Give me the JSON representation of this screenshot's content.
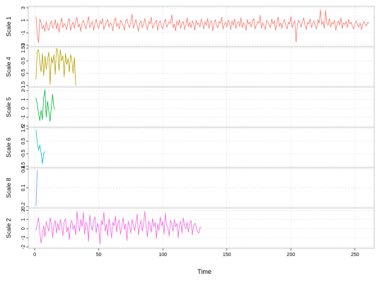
{
  "chart_data": {
    "type": "line",
    "xlabel": "Time",
    "xlim": [
      -5,
      265
    ],
    "xticks": [
      0,
      50,
      100,
      150,
      200,
      250
    ],
    "grid": true,
    "panels": [
      {
        "ylabel": "Scale 1",
        "color": "#F8766D",
        "ylim": [
          -3,
          3
        ],
        "yticks": [
          -3,
          -1,
          1,
          3
        ],
        "ytick_labels": [
          "-3",
          "-1",
          "1",
          "3"
        ],
        "x_start": 1,
        "values": [
          1.6,
          -1.2,
          -2.6,
          1.2,
          0.6,
          -0.4,
          0.2,
          -0.8,
          0.8,
          -0.2,
          -0.6,
          0.4,
          0.9,
          -0.3,
          0.2,
          1.1,
          -0.4,
          0.6,
          -0.9,
          0.3,
          1.4,
          -0.2,
          0.5,
          0.1,
          -0.5,
          0.8,
          1.3,
          -0.6,
          0.2,
          0.7,
          -0.3,
          0.9,
          1.5,
          -0.1,
          0.4,
          -0.8,
          0.6,
          1.0,
          0.2,
          -0.4,
          0.7,
          1.6,
          -0.2,
          0.3,
          0.8,
          -0.6,
          0.5,
          1.2,
          0.1,
          -0.3,
          0.9,
          0.4,
          1.3,
          -0.5,
          0.2,
          0.7,
          1.1,
          -0.1,
          0.6,
          0.3,
          -0.7,
          0.8,
          1.4,
          0.0,
          0.5,
          -0.4,
          1.0,
          0.6,
          0.2,
          -0.6,
          0.9,
          1.2,
          0.3,
          -0.2,
          0.7,
          2.0,
          -0.3,
          0.4,
          1.1,
          0.2,
          -0.8,
          0.6,
          0.9,
          -0.2,
          0.5,
          1.3,
          0.1,
          -0.5,
          0.8,
          0.4,
          1.5,
          -0.3,
          0.2,
          0.7,
          1.0,
          -0.6,
          0.5,
          0.9,
          0.1,
          -0.4,
          0.6,
          1.2,
          -0.1,
          0.3,
          0.8,
          0.5,
          1.9,
          -0.2,
          0.4,
          -0.7,
          0.9,
          0.2,
          1.1,
          -0.3,
          0.6,
          0.8,
          -0.5,
          0.3,
          1.4,
          0.0,
          0.7,
          -0.2,
          0.9,
          0.4,
          -0.6,
          1.0,
          0.3,
          0.6,
          -0.1,
          1.2,
          0.5,
          -0.4,
          0.8,
          0.2,
          1.3,
          -0.3,
          0.6,
          0.9,
          -0.7,
          0.4,
          1.1,
          0.1,
          -0.2,
          0.8,
          0.5,
          1.5,
          -0.4,
          0.3,
          0.7,
          -0.1,
          1.0,
          0.6,
          -0.5,
          0.9,
          0.2,
          1.2,
          -0.3,
          0.5,
          0.8,
          0.0,
          1.4,
          -0.2,
          0.6,
          0.3,
          -0.6,
          1.1,
          0.4,
          0.7,
          -0.1,
          0.9,
          1.3,
          -0.4,
          0.2,
          0.8,
          0.5,
          1.8,
          -0.3,
          0.6,
          0.1,
          -0.5,
          1.0,
          0.7,
          0.3,
          -0.2,
          1.2,
          0.4,
          0.9,
          -0.6,
          0.5,
          1.5,
          0.0,
          0.6,
          -0.3,
          0.8,
          1.1,
          0.2,
          -0.4,
          0.7,
          0.4,
          1.6,
          -0.2,
          0.5,
          0.9,
          -2.5,
          0.3,
          1.0,
          0.6,
          -0.1,
          0.8,
          1.4,
          0.2,
          -0.5,
          0.7,
          0.4,
          1.2,
          -0.2,
          0.6,
          0.9,
          0.1,
          -0.4,
          1.1,
          0.5,
          2.7,
          0.3,
          0.8,
          -0.3,
          2.6,
          0.6,
          0.2,
          1.3,
          -0.1,
          0.7,
          0.4,
          1.0,
          -0.6,
          0.5,
          0.9,
          0.2,
          1.4,
          -0.3,
          0.6,
          0.3,
          0.8,
          -0.2,
          1.1,
          0.4,
          0.7,
          0.0,
          -0.4,
          0.5,
          0.9,
          0.2,
          -0.1,
          0.6,
          -0.5,
          0.3,
          0.8,
          0.4,
          0.1,
          0.7,
          0.5
        ]
      },
      {
        "ylabel": "Scale 4",
        "color": "#B79F00",
        "ylim": [
          -1.5,
          1.53
        ],
        "yticks": [
          -1.5,
          -0.5,
          0.5,
          1.53
        ],
        "ytick_labels": [
          "-1.5",
          "-0.5",
          "0.5",
          "1.53"
        ],
        "x_start": 1,
        "values": [
          -1.0,
          1.3,
          1.4,
          0.4,
          -0.4,
          1.1,
          -0.7,
          0.9,
          -0.2,
          0.6,
          1.2,
          -1.4,
          0.8,
          0.3,
          1.0,
          -0.6,
          1.5,
          1.3,
          -0.3,
          1.4,
          0.5,
          0.9,
          -0.8,
          1.1,
          0.2,
          0.7,
          -0.4,
          1.0,
          0.6,
          -0.5,
          0.8,
          -1.5
        ]
      },
      {
        "ylabel": "Scale 5",
        "color": "#00BA38",
        "ylim": [
          -2,
          2.25
        ],
        "yticks": [
          -2,
          -1,
          0,
          1,
          2
        ],
        "ytick_labels": [
          "-2",
          "-1",
          "0",
          "1",
          "2"
        ],
        "x_start": 1,
        "values": [
          1.2,
          0.4,
          -0.6,
          -1.4,
          -0.2,
          -1.3,
          1.2,
          2.1,
          -1.0,
          0.8,
          -0.3,
          -1.5,
          0.2,
          1.6,
          0.0,
          -0.1
        ]
      },
      {
        "ylabel": "Scale 6",
        "color": "#00BFC4",
        "ylim": [
          -1.5,
          1.5
        ],
        "yticks": [
          -1.5,
          -0.5,
          0.5,
          1.5
        ],
        "ytick_labels": [
          "-1.5",
          "-0.5",
          "0.5",
          "1.5"
        ],
        "x_start": 1,
        "values": [
          1.4,
          0.4,
          -0.2,
          0.2,
          -0.4,
          -1.3,
          -0.5,
          -0.3
        ]
      },
      {
        "ylabel": "Scale 8",
        "color": "#619CFF",
        "ylim": [
          -0.2,
          0.4
        ],
        "yticks": [
          -0.2,
          0.1,
          0.4
        ],
        "ytick_labels": [
          "-0.2",
          "0.1",
          "0.4"
        ],
        "x_start": 1,
        "values": [
          -0.19,
          0.38
        ]
      },
      {
        "ylabel": "Scale 2",
        "color": "#F564E3",
        "ylim": [
          -2,
          2.1
        ],
        "yticks": [
          -2,
          -1,
          0,
          1,
          2
        ],
        "ytick_labels": [
          "-2",
          "-1",
          "0",
          "1",
          "2"
        ],
        "x_start": 1,
        "values": [
          -0.2,
          0.5,
          1.2,
          -0.4,
          -1.6,
          -0.6,
          0.3,
          -0.9,
          0.8,
          0.2,
          -0.3,
          1.2,
          0.5,
          -1.0,
          0.4,
          0.9,
          -0.5,
          0.6,
          -0.2,
          1.0,
          0.3,
          -0.8,
          0.7,
          1.1,
          -0.4,
          0.2,
          -1.2,
          0.6,
          0.9,
          -0.1,
          0.4,
          -0.7,
          1.9,
          0.5,
          -0.3,
          1.0,
          0.2,
          1.8,
          -0.6,
          0.7,
          0.3,
          -1.4,
          1.5,
          0.4,
          -0.2,
          0.8,
          1.3,
          -0.5,
          0.6,
          0.1,
          -1.7,
          0.9,
          0.4,
          1.8,
          -0.3,
          0.5,
          -0.8,
          1.1,
          0.2,
          -1.0,
          0.7,
          0.3,
          1.4,
          -0.4,
          0.6,
          0.9,
          -0.6,
          0.2,
          1.2,
          -0.1,
          0.5,
          -1.3,
          0.8,
          0.3,
          -0.5,
          1.0,
          0.4,
          -0.2,
          0.7,
          1.6,
          -0.7,
          0.3,
          0.9,
          -0.3,
          0.6,
          1.9,
          0.1,
          -0.9,
          0.8,
          0.4,
          -0.4,
          1.1,
          0.2,
          0.7,
          -1.1,
          0.5,
          -0.2,
          1.3,
          0.3,
          0.8,
          -0.6,
          1.7,
          0.4,
          0.1,
          -0.8,
          0.9,
          0.5,
          -0.3,
          1.0,
          0.2,
          0.6,
          -1.0,
          0.4,
          0.8,
          -0.5,
          1.2,
          0.3,
          0.0,
          0.7,
          -0.4,
          0.5,
          0.9,
          -0.7,
          0.3,
          0.6,
          0.2,
          -0.3,
          -0.5,
          0.1,
          0.2
        ]
      }
    ]
  }
}
